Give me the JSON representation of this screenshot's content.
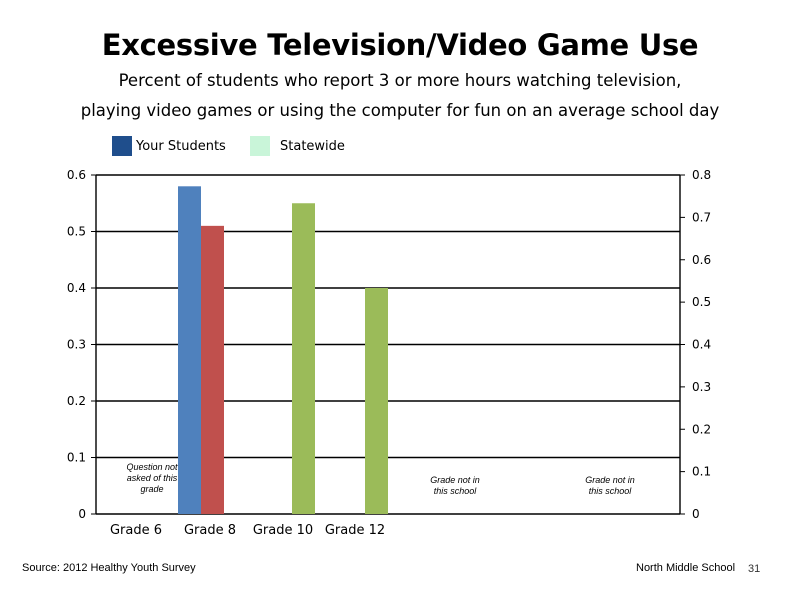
{
  "title": "Excessive Television/Video Game Use",
  "subtitle_line1": "Percent of students who report 3 or more hours watching television,",
  "subtitle_line2": "playing video games or using the computer for fun on an average school day",
  "legend": [
    {
      "label": "Your Students",
      "color": "#1f4e8c"
    },
    {
      "label": "Statewide",
      "color": "#c9f5d9"
    }
  ],
  "footer": {
    "source": "Source: 2012 Healthy Youth Survey",
    "school": "North Middle School",
    "page": "31"
  },
  "chart_data": {
    "type": "bar",
    "categories": [
      "Grade 6",
      "Grade 8",
      "Grade 10",
      "Grade 12"
    ],
    "left_axis": {
      "ylim": [
        0,
        0.6
      ],
      "ticks": [
        "0",
        "0.1",
        "0.2",
        "0.3",
        "0.4",
        "0.5",
        "0.6"
      ]
    },
    "right_axis": {
      "ylim": [
        0,
        0.8
      ],
      "ticks": [
        "0",
        "0.1",
        "0.2",
        "0.3",
        "0.4",
        "0.5",
        "0.6",
        "0.7",
        "0.8"
      ]
    },
    "grid": true,
    "bars": [
      {
        "category": "Grade 8",
        "value": 0.58,
        "color": "#4f81bd"
      },
      {
        "category": "Grade 8",
        "value": 0.51,
        "color": "#c0504d"
      },
      {
        "category": "Grade 10",
        "value": 0.55,
        "color": "#9bbb59"
      },
      {
        "category": "Grade 12",
        "value": 0.4,
        "color": "#9bbb59"
      }
    ],
    "annotations": [
      {
        "lines": [
          "Question not",
          "asked of this",
          "grade"
        ]
      },
      {
        "lines": [
          "Grade not in",
          "this school"
        ]
      },
      {
        "lines": [
          "Grade not in",
          "this school"
        ]
      }
    ]
  }
}
